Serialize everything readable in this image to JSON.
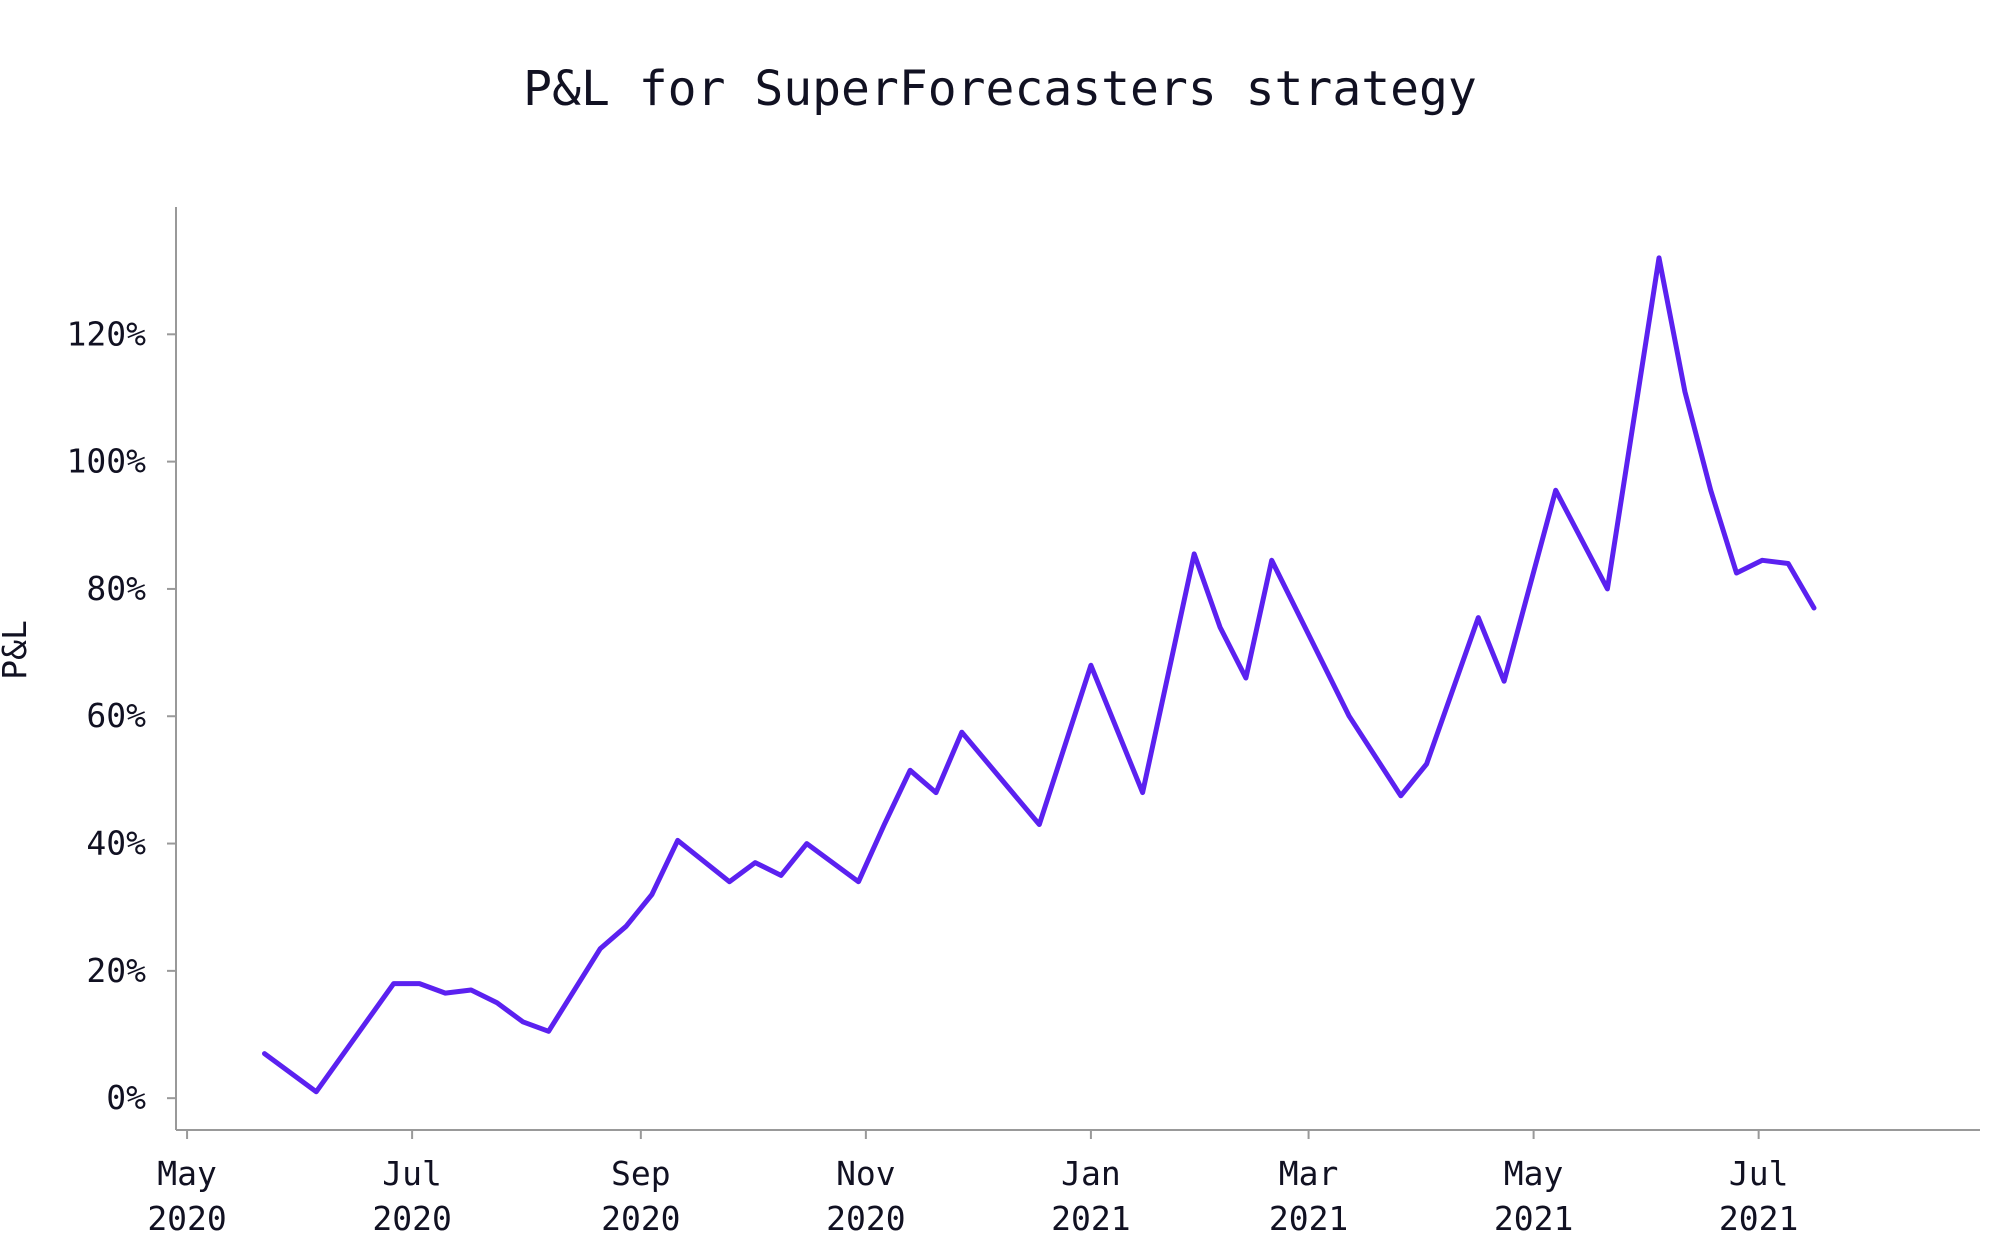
{
  "chart_data": {
    "type": "line",
    "title": "P&L for SuperForecasters strategy",
    "xlabel": "",
    "ylabel": "P&L",
    "x_ticks": [
      {
        "date": "2020-05-01",
        "month": "May",
        "year": "2020"
      },
      {
        "date": "2020-07-01",
        "month": "Jul",
        "year": "2020"
      },
      {
        "date": "2020-09-01",
        "month": "Sep",
        "year": "2020"
      },
      {
        "date": "2020-11-01",
        "month": "Nov",
        "year": "2020"
      },
      {
        "date": "2021-01-01",
        "month": "Jan",
        "year": "2021"
      },
      {
        "date": "2021-03-01",
        "month": "Mar",
        "year": "2021"
      },
      {
        "date": "2021-05-01",
        "month": "May",
        "year": "2021"
      },
      {
        "date": "2021-07-01",
        "month": "Jul",
        "year": "2021"
      }
    ],
    "y_ticks": [
      {
        "value": 0,
        "label": "0%"
      },
      {
        "value": 20,
        "label": "20%"
      },
      {
        "value": 40,
        "label": "40%"
      },
      {
        "value": 60,
        "label": "60%"
      },
      {
        "value": 80,
        "label": "80%"
      },
      {
        "value": 100,
        "label": "100%"
      },
      {
        "value": 120,
        "label": "120%"
      }
    ],
    "xlim": [
      "2020-04-28",
      "2021-08-30"
    ],
    "ylim": [
      -5,
      140
    ],
    "grid": false,
    "color": "#5b21f0",
    "series": [
      {
        "x": [
          "2020-05-22",
          "2020-06-05",
          "2020-06-26",
          "2020-07-03",
          "2020-07-10",
          "2020-07-17",
          "2020-07-24",
          "2020-07-31",
          "2020-08-07",
          "2020-08-21",
          "2020-08-28",
          "2020-09-04",
          "2020-09-11",
          "2020-09-25",
          "2020-10-02",
          "2020-10-09",
          "2020-10-16",
          "2020-10-30",
          "2020-11-06",
          "2020-11-13",
          "2020-11-20",
          "2020-11-27",
          "2020-12-18",
          "2021-01-01",
          "2021-01-15",
          "2021-01-29",
          "2021-02-05",
          "2021-02-12",
          "2021-02-19",
          "2021-03-12",
          "2021-03-26",
          "2021-04-02",
          "2021-04-16",
          "2021-04-23",
          "2021-05-07",
          "2021-05-21",
          "2021-06-04",
          "2021-06-11",
          "2021-06-18",
          "2021-06-25",
          "2021-07-02",
          "2021-07-09",
          "2021-07-16"
        ],
        "values": [
          7,
          1,
          18,
          18,
          16.5,
          17,
          15,
          12,
          10.5,
          23.5,
          27,
          32,
          40.5,
          34,
          37,
          35,
          40,
          34,
          43,
          51.5,
          48,
          57.5,
          43,
          68,
          48,
          85.5,
          74,
          66,
          84.5,
          60,
          47.5,
          52.5,
          75.5,
          65.5,
          95.5,
          80,
          132,
          111,
          95.5,
          82.5,
          84.5,
          84,
          77
        ]
      }
    ]
  }
}
